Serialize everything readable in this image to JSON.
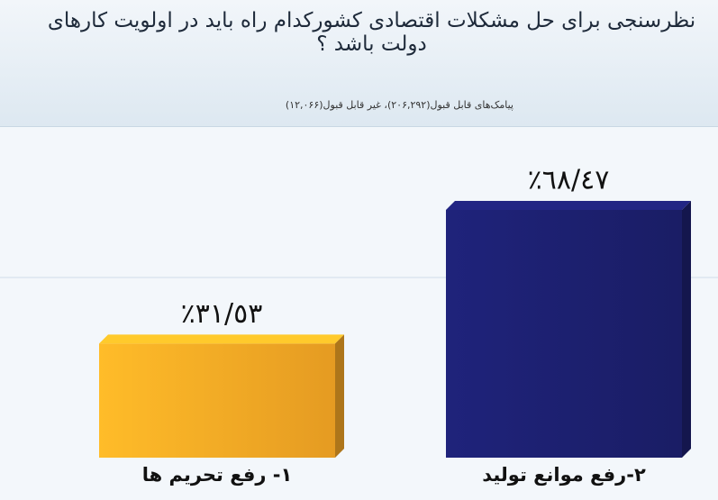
{
  "chart_data": {
    "type": "bar3d",
    "title": "نظرسنجی برای حل مشکلات اقتصادی کشورکدام راه باید در اولویت کارهای دولت باشد ؟",
    "subtitle": "پیامک‌های قابل قبول(۲۰۶,۲۹۲)، غیر قابل قبول(۱۲,۰۶۶)",
    "categories": [
      "۱- رفع تحریم ها",
      "۲-رفع موانع تولید"
    ],
    "values": [
      31.53,
      68.47
    ],
    "value_labels": [
      "٣١/٥٣٪",
      "٦٨/٤٧٪"
    ],
    "colors": [
      "#f9a825",
      "#1c1f6e"
    ]
  }
}
